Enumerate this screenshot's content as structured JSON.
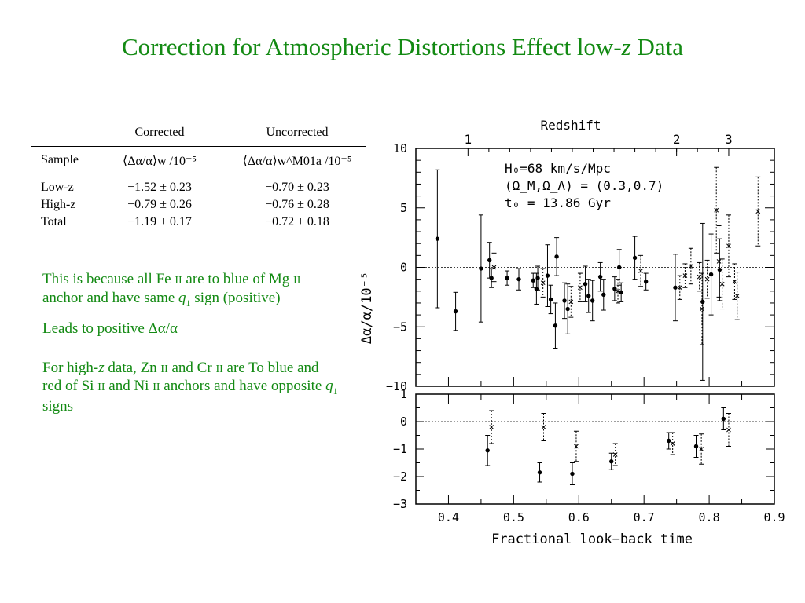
{
  "title": {
    "main": "Correction for Atmospheric Distortions Effect low-",
    "z": "z",
    "tail": " Data"
  },
  "table": {
    "group_headers": [
      "Corrected",
      "Uncorrected"
    ],
    "columns": [
      "Sample",
      "⟨Δα/α⟩w /10⁻⁵",
      "⟨Δα/α⟩w^M01a /10⁻⁵"
    ],
    "rows": [
      {
        "sample": "Low-z",
        "corrected": "−1.52 ± 0.23",
        "uncorrected": "−0.70 ± 0.23"
      },
      {
        "sample": "High-z",
        "corrected": "−0.79 ± 0.26",
        "uncorrected": "−0.76 ± 0.28"
      },
      {
        "sample": "Total",
        "corrected": "−1.19 ± 0.17",
        "uncorrected": "−0.72 ± 0.18"
      }
    ]
  },
  "notes": {
    "p1a": "This is because all Fe ",
    "p1b": "II",
    "p1c": " are to blue of Mg ",
    "p1d": "II",
    "p1e": " anchor and have same ",
    "p1f": "q",
    "p1g": "1",
    "p1h": " sign (positive)",
    "p2a": "Leads to positive Δα/α",
    "p3a": "For high-",
    "p3b": "z",
    "p3c": " data, Zn ",
    "p3d": "II",
    "p3e": " and Cr ",
    "p3f": "II",
    "p3g": " are To blue and red of Si ",
    "p3h": "II",
    "p3i": " and Ni ",
    "p3j": "II",
    "p3k": " anchors and have opposite ",
    "p3l": "q",
    "p3m": "1",
    "p3n": " signs"
  },
  "chart_data": {
    "type": "scatter",
    "xlabel": "Fractional look−back time",
    "x_range": [
      0.35,
      0.9
    ],
    "x_ticks": [
      "0.4",
      "0.5",
      "0.6",
      "0.7",
      "0.8",
      "0.9"
    ],
    "top_axis": {
      "label": "Redshift",
      "ticks": [
        {
          "label": "1",
          "x": 0.43
        },
        {
          "label": "2",
          "x": 0.75
        },
        {
          "label": "3",
          "x": 0.83
        }
      ]
    },
    "top_panel": {
      "ylabel": "Δα/α/10⁻⁵",
      "y_range": [
        -10,
        10
      ],
      "y_ticks": [
        "10",
        "5",
        "0",
        "−5",
        "−10"
      ],
      "annotation": [
        "H₀=68 km/s/Mpc",
        "(Ω_M,Ω_Λ) = (0.3,0.7)",
        "t₀ = 13.86 Gyr"
      ],
      "corrected": [
        {
          "x": 0.383,
          "y": 2.4,
          "err": 5.8
        },
        {
          "x": 0.411,
          "y": -3.7,
          "err": 1.6
        },
        {
          "x": 0.45,
          "y": -0.1,
          "err": 4.5
        },
        {
          "x": 0.463,
          "y": 0.6,
          "err": 1.5
        },
        {
          "x": 0.466,
          "y": -0.9,
          "err": 0.8
        },
        {
          "x": 0.49,
          "y": -0.9,
          "err": 0.6
        },
        {
          "x": 0.508,
          "y": -1.0,
          "err": 0.9
        },
        {
          "x": 0.53,
          "y": -1.1,
          "err": 0.6
        },
        {
          "x": 0.535,
          "y": -1.8,
          "err": 1.3
        },
        {
          "x": 0.537,
          "y": -0.9,
          "err": 1.0
        },
        {
          "x": 0.552,
          "y": -0.7,
          "err": 2.6
        },
        {
          "x": 0.557,
          "y": -2.7,
          "err": 1.2
        },
        {
          "x": 0.564,
          "y": -4.9,
          "err": 1.9
        },
        {
          "x": 0.566,
          "y": 0.9,
          "err": 1.6
        },
        {
          "x": 0.578,
          "y": -2.8,
          "err": 1.5
        },
        {
          "x": 0.583,
          "y": -3.5,
          "err": 2.1
        },
        {
          "x": 0.61,
          "y": -1.4,
          "err": 1.5
        },
        {
          "x": 0.615,
          "y": -2.4,
          "err": 1.4
        },
        {
          "x": 0.621,
          "y": -2.8,
          "err": 1.7
        },
        {
          "x": 0.633,
          "y": -0.8,
          "err": 1.2
        },
        {
          "x": 0.638,
          "y": -2.3,
          "err": 1.3
        },
        {
          "x": 0.655,
          "y": -1.8,
          "err": 1.0
        },
        {
          "x": 0.662,
          "y": 0.0,
          "err": 1.5
        },
        {
          "x": 0.665,
          "y": -2.1,
          "err": 0.8
        },
        {
          "x": 0.686,
          "y": 0.8,
          "err": 1.8
        },
        {
          "x": 0.703,
          "y": -1.2,
          "err": 0.7
        },
        {
          "x": 0.748,
          "y": -1.7,
          "err": 2.8
        },
        {
          "x": 0.79,
          "y": -2.9,
          "err": 6.6
        },
        {
          "x": 0.803,
          "y": -0.6,
          "err": 3.4
        },
        {
          "x": 0.816,
          "y": -0.2,
          "err": 2.6
        }
      ],
      "uncorrected": [
        {
          "x": 0.47,
          "y": 0.0,
          "err": 1.2
        },
        {
          "x": 0.545,
          "y": -1.3,
          "err": 1.2
        },
        {
          "x": 0.588,
          "y": -2.9,
          "err": 1.3
        },
        {
          "x": 0.602,
          "y": -1.7,
          "err": 1.2
        },
        {
          "x": 0.66,
          "y": -2.0,
          "err": 1.0
        },
        {
          "x": 0.695,
          "y": -0.3,
          "err": 1.3
        },
        {
          "x": 0.755,
          "y": -1.7,
          "err": 1.0
        },
        {
          "x": 0.763,
          "y": -0.7,
          "err": 1.0
        },
        {
          "x": 0.772,
          "y": 0.1,
          "err": 1.5
        },
        {
          "x": 0.785,
          "y": -0.8,
          "err": 1.2
        },
        {
          "x": 0.789,
          "y": -3.5,
          "err": 3.0
        },
        {
          "x": 0.797,
          "y": -1.0,
          "err": 1.6
        },
        {
          "x": 0.811,
          "y": 4.8,
          "err": 3.6
        },
        {
          "x": 0.815,
          "y": 0.5,
          "err": 3.0
        },
        {
          "x": 0.82,
          "y": -1.4,
          "err": 2.1
        },
        {
          "x": 0.83,
          "y": 1.8,
          "err": 2.6
        },
        {
          "x": 0.839,
          "y": -1.2,
          "err": 1.5
        },
        {
          "x": 0.843,
          "y": -2.4,
          "err": 2.0
        },
        {
          "x": 0.875,
          "y": 4.7,
          "err": 2.9
        }
      ]
    },
    "bottom_panel": {
      "y_range": [
        -3,
        1
      ],
      "y_ticks": [
        "1",
        "0",
        "−1",
        "−2",
        "−3"
      ],
      "corrected": [
        {
          "x": 0.46,
          "y": -1.05,
          "err": 0.55
        },
        {
          "x": 0.54,
          "y": -1.85,
          "err": 0.35
        },
        {
          "x": 0.59,
          "y": -1.9,
          "err": 0.4
        },
        {
          "x": 0.65,
          "y": -1.45,
          "err": 0.3
        },
        {
          "x": 0.738,
          "y": -0.7,
          "err": 0.3
        },
        {
          "x": 0.78,
          "y": -0.9,
          "err": 0.4
        },
        {
          "x": 0.822,
          "y": 0.1,
          "err": 0.4
        }
      ],
      "uncorrected": [
        {
          "x": 0.466,
          "y": -0.2,
          "err": 0.6
        },
        {
          "x": 0.546,
          "y": -0.2,
          "err": 0.5
        },
        {
          "x": 0.596,
          "y": -0.9,
          "err": 0.55
        },
        {
          "x": 0.656,
          "y": -1.2,
          "err": 0.4
        },
        {
          "x": 0.744,
          "y": -0.8,
          "err": 0.4
        },
        {
          "x": 0.788,
          "y": -1.0,
          "err": 0.55
        },
        {
          "x": 0.83,
          "y": -0.3,
          "err": 0.6
        }
      ]
    }
  }
}
